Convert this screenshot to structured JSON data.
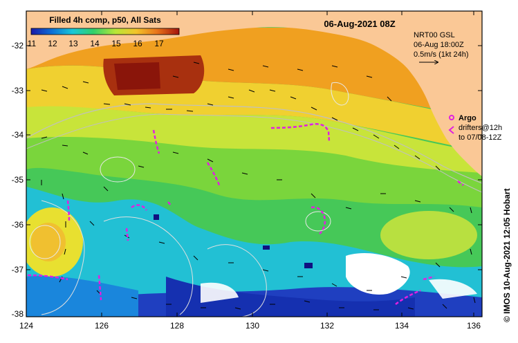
{
  "header": {
    "product": "Filled 4h comp, p50, All Sats",
    "datetime": "06-Aug-2021 08Z"
  },
  "colorbar": {
    "ticks": [
      "11",
      "12",
      "13",
      "14",
      "15",
      "16",
      "17"
    ],
    "colors": [
      "#1a1aa8",
      "#0d6fd6",
      "#19c8d8",
      "#31d06a",
      "#b8e637",
      "#f2c42a",
      "#e8741a",
      "#a4130d"
    ]
  },
  "current_info": {
    "line1": "NRT00 GSL",
    "line2": "06-Aug 18:00Z",
    "line3": "0.5m/s (1kt 24h)"
  },
  "argo_legend": {
    "title": "Argo",
    "line2": "drifters@12h",
    "line3": "to 07/08-12Z",
    "color": "#e020e0"
  },
  "y_axis": {
    "labels": [
      "-32",
      "-33",
      "-34",
      "-35",
      "-36",
      "-37",
      "-38"
    ]
  },
  "x_axis": {
    "labels": [
      "124",
      "126",
      "128",
      "130",
      "132",
      "134",
      "136"
    ]
  },
  "credit": "© IMOS 10-Aug-2021 12:05 Hobart",
  "colors": {
    "land": "#fac896",
    "ocean_bg": "#46c858",
    "missing": "#ffffff"
  }
}
